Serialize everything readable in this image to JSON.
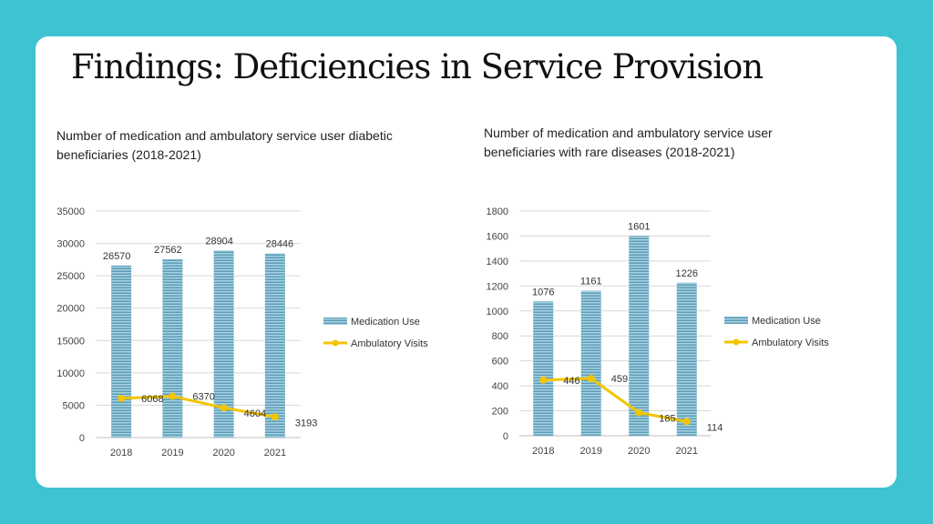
{
  "title": "Findings: Deficiencies in Service Provision",
  "colors": {
    "background": "#3ec3d0",
    "bar": "#6aaac3",
    "line": "#f2c500",
    "grid": "#d9d9d9"
  },
  "chart_data": [
    {
      "type": "bar",
      "title": "Number of medication and ambulatory service user diabetic beneficiaries (2018-2021)",
      "categories": [
        "2018",
        "2019",
        "2020",
        "2021"
      ],
      "ylim": [
        0,
        35000
      ],
      "yticks": [
        "0",
        "5000",
        "10000",
        "15000",
        "20000",
        "25000",
        "30000",
        "35000"
      ],
      "series": [
        {
          "name": "Medication Use",
          "kind": "bar",
          "values": [
            26570,
            27562,
            28904,
            28446
          ],
          "labels": [
            "26570",
            "27562",
            "28904",
            "28446"
          ]
        },
        {
          "name": "Ambulatory Visits",
          "kind": "line",
          "values": [
            6068,
            6370,
            4604,
            3193
          ],
          "labels": [
            "6068",
            "6370",
            "4604",
            "3193"
          ]
        }
      ],
      "legend": "right"
    },
    {
      "type": "bar",
      "title": "Number of medication and ambulatory service user beneficiaries with rare diseases (2018-2021)",
      "categories": [
        "2018",
        "2019",
        "2020",
        "2021"
      ],
      "ylim": [
        0,
        1800
      ],
      "yticks": [
        "0",
        "200",
        "400",
        "600",
        "800",
        "1000",
        "1200",
        "1400",
        "1600",
        "1800"
      ],
      "series": [
        {
          "name": "Medication Use",
          "kind": "bar",
          "values": [
            1076,
            1161,
            1601,
            1226
          ],
          "labels": [
            "1076",
            "1161",
            "1601",
            "1226"
          ]
        },
        {
          "name": "Ambulatory Visits",
          "kind": "line",
          "values": [
            446,
            459,
            185,
            114
          ],
          "labels": [
            "446",
            "459",
            "185",
            "114"
          ]
        }
      ],
      "legend": "right"
    }
  ]
}
